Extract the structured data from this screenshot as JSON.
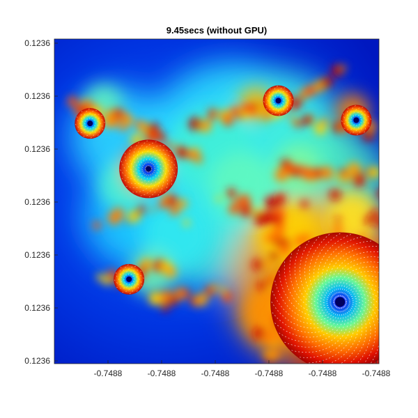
{
  "chart_data": {
    "type": "heatmap",
    "title": "9.45secs (without GPU)",
    "xlabel": "",
    "ylabel": "",
    "x_tick_labels": [
      "-0.7488",
      "-0.7488",
      "-0.7488",
      "-0.7488",
      "-0.7488",
      "-0.7488"
    ],
    "y_tick_labels": [
      "0.1236",
      "0.1236",
      "0.1236",
      "0.1236",
      "0.1236",
      "0.1236",
      "0.1236"
    ],
    "colormap": "jet",
    "grid": false,
    "legend": "none",
    "image_description_kind": "Mandelbrot set zoom (escape-time fractal)",
    "spiral_centers": [
      {
        "x_frac": 0.29,
        "y_frac": 0.4
      },
      {
        "x_frac": 0.88,
        "y_frac": 0.81
      },
      {
        "x_frac": 0.69,
        "y_frac": 0.19
      },
      {
        "x_frac": 0.11,
        "y_frac": 0.26
      },
      {
        "x_frac": 0.23,
        "y_frac": 0.74
      },
      {
        "x_frac": 0.93,
        "y_frac": 0.25
      }
    ]
  }
}
